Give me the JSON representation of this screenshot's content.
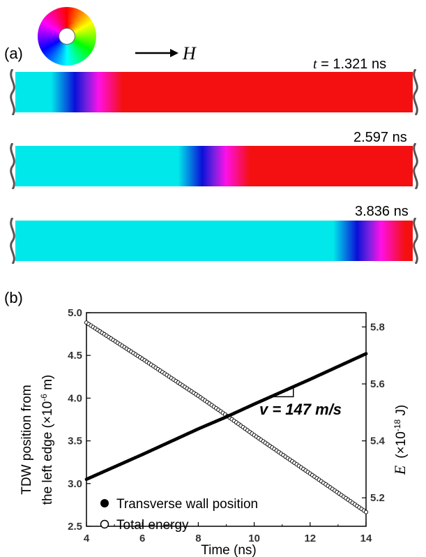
{
  "panel_a": {
    "label": "(a)",
    "field_label": "H",
    "time_prefix": "t",
    "snapshots": [
      {
        "time": "= 1.321 ns",
        "wall_position": 0.18
      },
      {
        "time": "2.597 ns",
        "wall_position": 0.5
      },
      {
        "time": "3.836 ns",
        "wall_position": 0.89
      }
    ],
    "colors": {
      "domain_left": "#00e8ea",
      "wall_blue": "#0a10d8",
      "wall_magenta": "#ff10e8",
      "domain_right": "#f41010"
    },
    "color_wheel_icon": "hsv-color-wheel-icon"
  },
  "panel_b": {
    "label": "(b)",
    "velocity_annotation": "v = 147 m/s",
    "ylabel_left_line1": "TDW position from",
    "ylabel_left_line2": "the left edge  (×10",
    "ylabel_left_exp": "-6",
    "ylabel_left_unit": " m)",
    "ylabel_right_sym": "E",
    "ylabel_right_scale": "(×10",
    "ylabel_right_exp": "-18",
    "ylabel_right_unit": " J)"
  },
  "chart_data": {
    "type": "scatter",
    "xlabel": "Time (ns)",
    "xlim": [
      4,
      14
    ],
    "ylim": [
      2.5,
      5.0
    ],
    "y2lim": [
      5.1,
      5.85
    ],
    "xticks": [
      "4",
      "6",
      "8",
      "10",
      "12",
      "14"
    ],
    "yticks": [
      "2.5",
      "3.0",
      "3.5",
      "4.0",
      "4.5",
      "5.0"
    ],
    "y2ticks": [
      "5.2",
      "5.4",
      "5.6",
      "5.8"
    ],
    "legend_position": "bottom-left",
    "series": [
      {
        "name": "Transverse wall position",
        "marker": "filled-circle",
        "axis": "left",
        "x": [
          4,
          6,
          8,
          9,
          10,
          12,
          14
        ],
        "y": [
          3.05,
          3.34,
          3.64,
          3.78,
          3.93,
          4.22,
          4.52
        ]
      },
      {
        "name": "Total energy",
        "marker": "open-circle",
        "axis": "right",
        "x": [
          4,
          6,
          8,
          9,
          10,
          12,
          14
        ],
        "y": [
          5.815,
          5.688,
          5.558,
          5.49,
          5.42,
          5.285,
          5.15
        ]
      }
    ]
  }
}
